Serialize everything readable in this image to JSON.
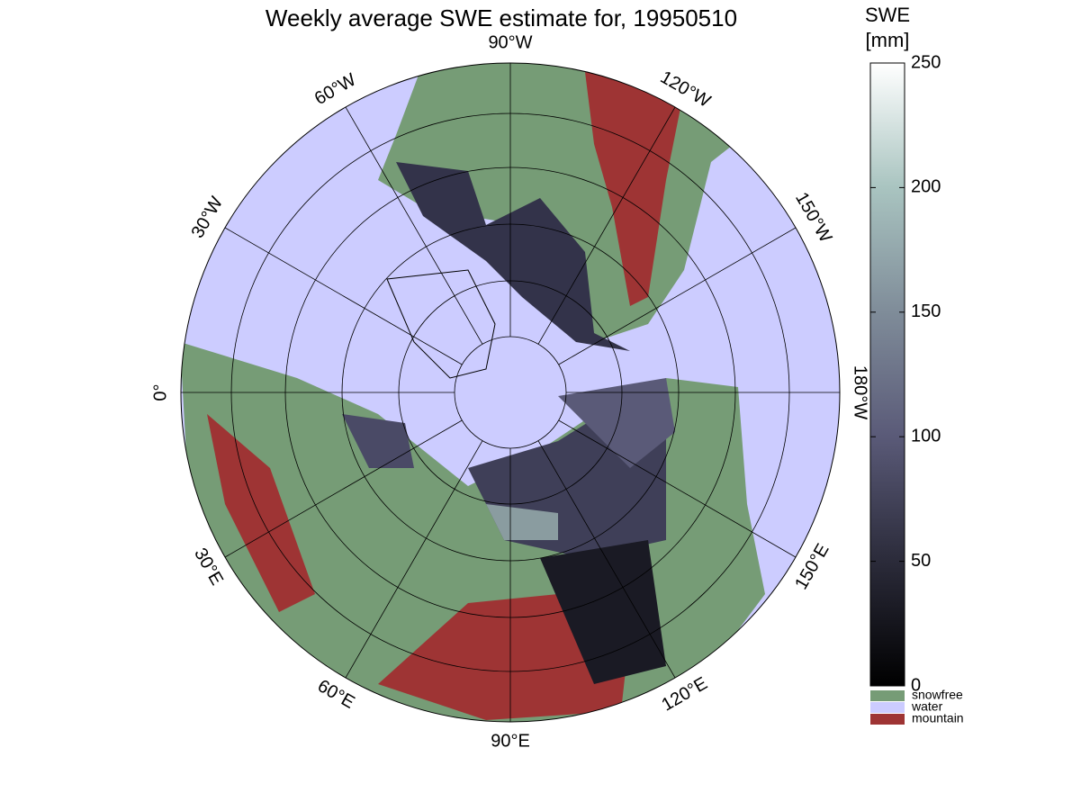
{
  "title": "Weekly average SWE estimate for, 19950510",
  "meridians": [
    {
      "value": 0,
      "label": "0°"
    },
    {
      "value": -30,
      "label": "30°W"
    },
    {
      "value": -60,
      "label": "60°W"
    },
    {
      "value": -90,
      "label": "90°W"
    },
    {
      "value": -120,
      "label": "120°W"
    },
    {
      "value": -150,
      "label": "150°W"
    },
    {
      "value": 180,
      "label": "180°W"
    },
    {
      "value": 30,
      "label": "30°E"
    },
    {
      "value": 60,
      "label": "60°E"
    },
    {
      "value": 90,
      "label": "90°E"
    },
    {
      "value": 120,
      "label": "120°E"
    },
    {
      "value": 150,
      "label": "150°E"
    }
  ],
  "colorbar": {
    "label_lines": [
      "SWE",
      "[mm]"
    ],
    "range": [
      0,
      250
    ],
    "ticks": [
      0,
      50,
      100,
      150,
      200,
      250
    ],
    "colors": [
      "#000000",
      "#2b2b3a",
      "#5a5a78",
      "#7f8c99",
      "#a9c4c0",
      "#ffffff"
    ]
  },
  "legend": [
    {
      "label": "snowfree",
      "color": "#769c76"
    },
    {
      "label": "water",
      "color": "#ccccff"
    },
    {
      "label": "mountain",
      "color": "#9e3434"
    }
  ]
}
